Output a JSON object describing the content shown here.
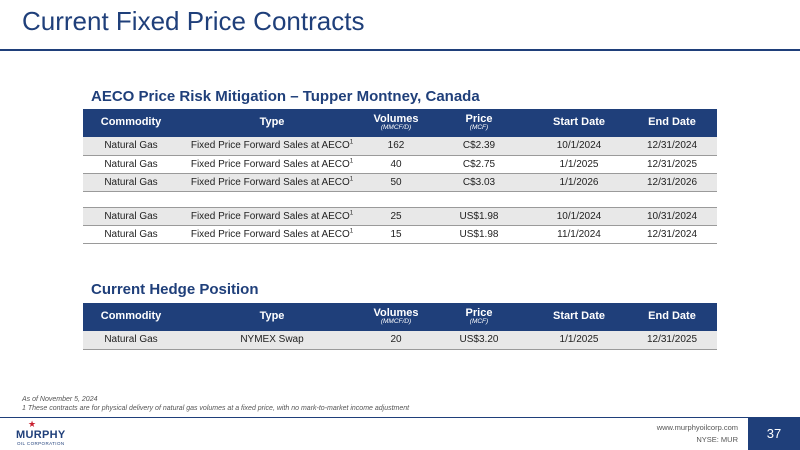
{
  "title": "Current Fixed Price Contracts",
  "section1": {
    "title": "AECO Price Risk Mitigation – Tupper Montney, Canada",
    "headers": {
      "commodity": "Commodity",
      "type": "Type",
      "volumes": "Volumes",
      "volumes_unit": "(MMCF/D)",
      "price": "Price",
      "price_unit": "(MCF)",
      "start": "Start Date",
      "end": "End Date"
    },
    "rows": [
      {
        "commodity": "Natural Gas",
        "type": "Fixed Price Forward Sales at AECO",
        "sup": "1",
        "volumes": "162",
        "price": "C$2.39",
        "start": "10/1/2024",
        "end": "12/31/2024"
      },
      {
        "commodity": "Natural Gas",
        "type": "Fixed Price Forward Sales at AECO",
        "sup": "1",
        "volumes": "40",
        "price": "C$2.75",
        "start": "1/1/2025",
        "end": "12/31/2025"
      },
      {
        "commodity": "Natural Gas",
        "type": "Fixed Price Forward Sales at AECO",
        "sup": "1",
        "volumes": "50",
        "price": "C$3.03",
        "start": "1/1/2026",
        "end": "12/31/2026"
      },
      {
        "commodity": "Natural Gas",
        "type": "Fixed Price Forward Sales at AECO",
        "sup": "1",
        "volumes": "25",
        "price": "US$1.98",
        "start": "10/1/2024",
        "end": "10/31/2024"
      },
      {
        "commodity": "Natural Gas",
        "type": "Fixed Price Forward Sales at AECO",
        "sup": "1",
        "volumes": "15",
        "price": "US$1.98",
        "start": "11/1/2024",
        "end": "12/31/2024"
      }
    ]
  },
  "section2": {
    "title": "Current Hedge Position",
    "headers": {
      "commodity": "Commodity",
      "type": "Type",
      "volumes": "Volumes",
      "volumes_unit": "(MMCF/D)",
      "price": "Price",
      "price_unit": "(MCF)",
      "start": "Start Date",
      "end": "End Date"
    },
    "rows": [
      {
        "commodity": "Natural Gas",
        "type": "NYMEX Swap",
        "volumes": "20",
        "price": "US$3.20",
        "start": "1/1/2025",
        "end": "12/31/2025"
      }
    ]
  },
  "footnotes": {
    "date": "As of November 5, 2024",
    "note1": "1 These contracts are for physical delivery of natural gas volumes at a fixed price, with no mark-to-market income adjustment"
  },
  "footer": {
    "logo_name": "MURPHY",
    "logo_sub": "OIL CORPORATION",
    "url": "www.murphyoilcorp.com",
    "ticker": "NYSE: MUR",
    "page": "37"
  },
  "colors": {
    "brand_navy": "#1f3f7a",
    "logo_red": "#c8202f",
    "row_alt": "#e8e8e8"
  }
}
